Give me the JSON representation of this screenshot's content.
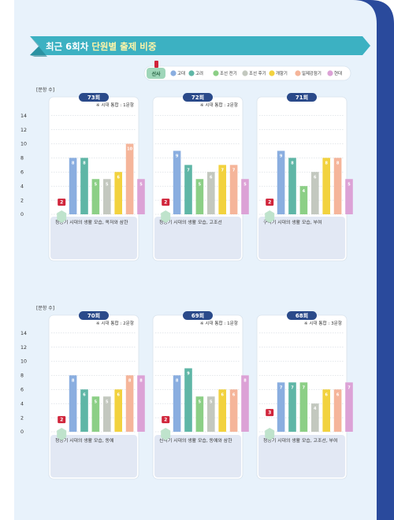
{
  "header": {
    "title_part1": "최근 6회차 ",
    "title_part2": "단원별 출제 비중"
  },
  "legend": {
    "items": [
      {
        "label": "선사",
        "color": "#d0243a"
      },
      {
        "label": "고대",
        "color": "#8aaee0"
      },
      {
        "label": "고려",
        "color": "#5fb6a6"
      },
      {
        "label": "조선 전기",
        "color": "#8ccf86"
      },
      {
        "label": "조선 후기",
        "color": "#c3c8bf"
      },
      {
        "label": "개항기",
        "color": "#f2d23e"
      },
      {
        "label": "일제강점기",
        "color": "#f5b59a"
      },
      {
        "label": "현대",
        "color": "#dca2d6"
      }
    ]
  },
  "axis_label": "[문항 수]",
  "axis_ticks": [
    "14",
    "12",
    "10",
    "8",
    "6",
    "4",
    "2",
    "0"
  ],
  "chart_data": [
    {
      "type": "bar",
      "title": "73회",
      "note": "※ 시대 통합 : 1문항",
      "categories": [
        "선사",
        "고대",
        "고려",
        "조선 전기",
        "조선 후기",
        "개항기",
        "일제강점기",
        "현대"
      ],
      "values": [
        2,
        8,
        8,
        5,
        5,
        6,
        10,
        5
      ],
      "caption": "청동기 시대의 생활 모습, 옥저와 삼한",
      "ylim": [
        0,
        14
      ]
    },
    {
      "type": "bar",
      "title": "72회",
      "note": "※ 시대 통합 : 2문항",
      "categories": [
        "선사",
        "고대",
        "고려",
        "조선 전기",
        "조선 후기",
        "개항기",
        "일제강점기",
        "현대"
      ],
      "values": [
        2,
        9,
        7,
        5,
        6,
        7,
        7,
        5
      ],
      "caption": "청동기 시대의 생활 모습, 고조선",
      "ylim": [
        0,
        14
      ]
    },
    {
      "type": "bar",
      "title": "71회",
      "note": "",
      "categories": [
        "선사",
        "고대",
        "고려",
        "조선 전기",
        "조선 후기",
        "개항기",
        "일제강점기",
        "현대"
      ],
      "values": [
        2,
        9,
        8,
        4,
        6,
        8,
        8,
        5
      ],
      "caption": "구석기 시대의 생활 모습, 부여",
      "ylim": [
        0,
        14
      ]
    },
    {
      "type": "bar",
      "title": "70회",
      "note": "※ 시대 통합 : 2문항",
      "categories": [
        "선사",
        "고대",
        "고려",
        "조선 전기",
        "조선 후기",
        "개항기",
        "일제강점기",
        "현대"
      ],
      "values": [
        2,
        8,
        6,
        5,
        5,
        6,
        8,
        8
      ],
      "caption": "청동기 시대의 생활 모습, 동예",
      "ylim": [
        0,
        14
      ]
    },
    {
      "type": "bar",
      "title": "69회",
      "note": "※ 시대 통합 : 1문항",
      "categories": [
        "선사",
        "고대",
        "고려",
        "조선 전기",
        "조선 후기",
        "개항기",
        "일제강점기",
        "현대"
      ],
      "values": [
        2,
        8,
        9,
        5,
        5,
        6,
        6,
        8
      ],
      "caption": "신석기 시대의 생활 모습, 동예와 삼한",
      "ylim": [
        0,
        14
      ]
    },
    {
      "type": "bar",
      "title": "68회",
      "note": "※ 시대 통합 : 3문항",
      "categories": [
        "선사",
        "고대",
        "고려",
        "조선 전기",
        "조선 후기",
        "개항기",
        "일제강점기",
        "현대"
      ],
      "values": [
        3,
        7,
        7,
        7,
        4,
        6,
        6,
        7
      ],
      "caption": "청동기 시대의 생활 모습, 고조선, 부여",
      "ylim": [
        0,
        14
      ]
    }
  ]
}
